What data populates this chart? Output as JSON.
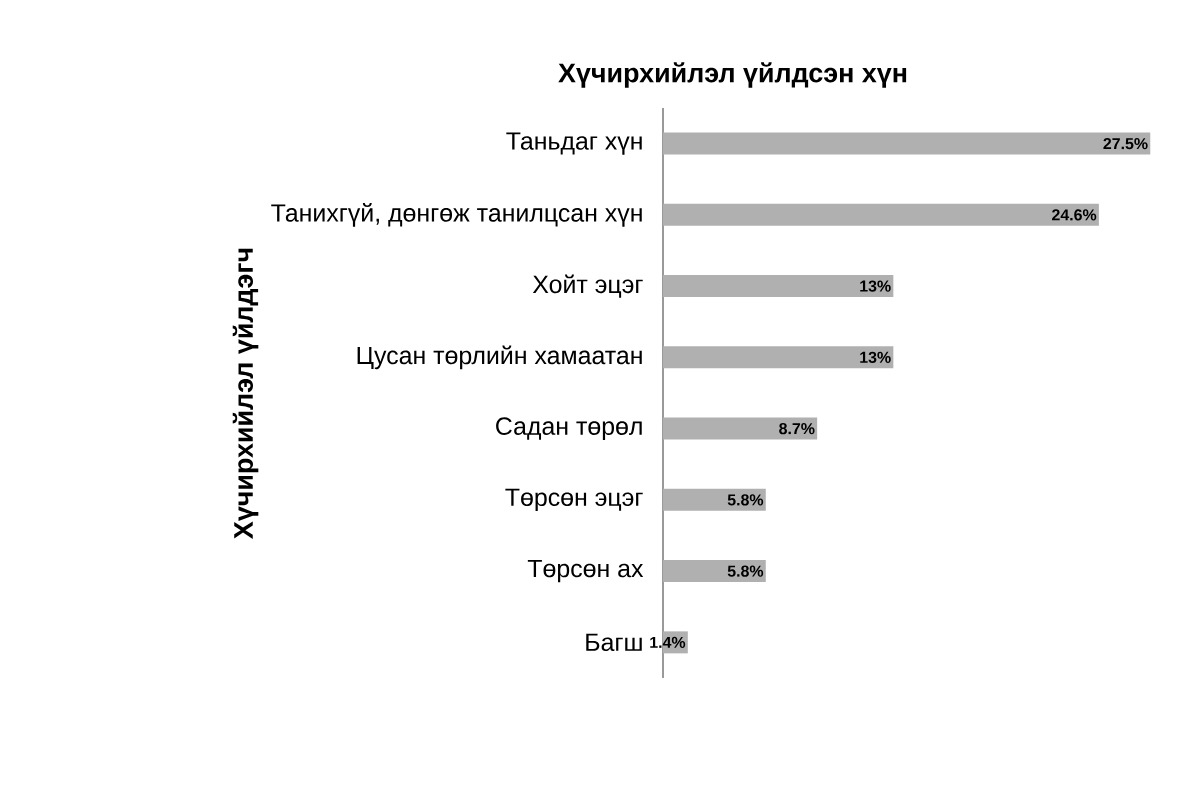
{
  "chart_data": {
    "type": "bar",
    "orientation": "horizontal",
    "title": "Хүчирхийлэл үйлдсэн хүн",
    "ylabel": "Хүчирхийлэл үйлдэгч",
    "categories": [
      "Таньдаг хүн",
      "Танихгүй, дөнгөж танилцсан хүн",
      "Хойт эцэг",
      "Цусан төрлийн хамаатан",
      "Садан төрөл",
      "Төрсөн эцэг",
      "Төрсөн ах",
      "Багш"
    ],
    "values": [
      27.5,
      24.6,
      13,
      13,
      8.7,
      5.8,
      5.8,
      1.4
    ],
    "value_labels": [
      "27.5%",
      "24.6%",
      "13%",
      "13%",
      "8.7%",
      "5.8%",
      "5.8%",
      "1.4%"
    ],
    "color": "#b0b0b0"
  }
}
